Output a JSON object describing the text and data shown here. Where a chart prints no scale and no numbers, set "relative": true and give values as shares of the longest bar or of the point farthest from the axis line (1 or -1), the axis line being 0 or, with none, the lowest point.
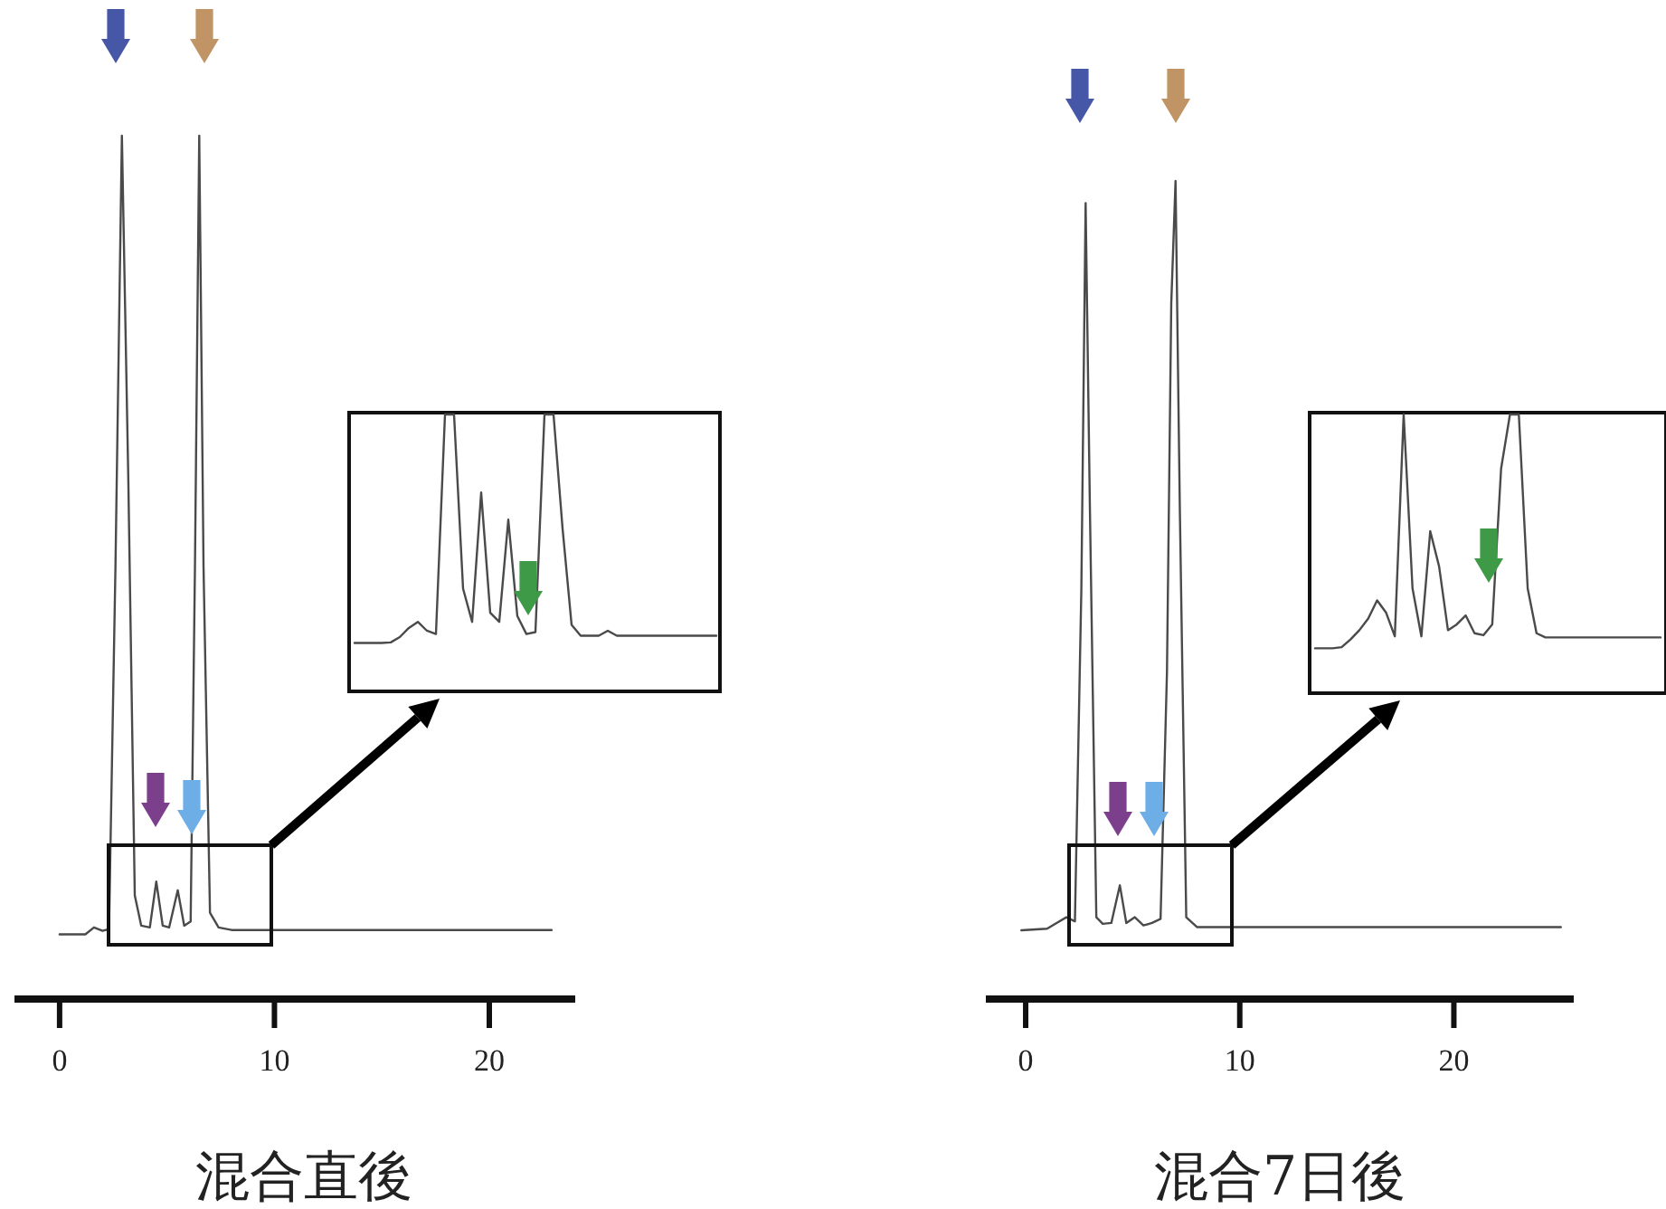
{
  "chart_data": [
    {
      "type": "line",
      "relative": true,
      "xlabel": "混合直後",
      "xlim": [
        -2.1,
        24
      ],
      "xticks": [
        0,
        10,
        20
      ],
      "series": [
        {
          "color": "#4a4a4a",
          "x": [
            0,
            1.2,
            1.6,
            2.0,
            2.3,
            2.6,
            2.9,
            3.2,
            3.5,
            3.8,
            4.2,
            4.5,
            4.8,
            5.1,
            5.5,
            5.8,
            6.1,
            6.3,
            6.5,
            6.7,
            7.0,
            7.4,
            8,
            12,
            16,
            20,
            22.9
          ],
          "values": [
            0.075,
            0.075,
            0.083,
            0.079,
            0.081,
            0.5,
            1,
            0.6,
            0.12,
            0.085,
            0.083,
            0.136,
            0.085,
            0.083,
            0.126,
            0.085,
            0.09,
            0.5,
            1,
            0.5,
            0.1,
            0.083,
            0.08,
            0.08,
            0.08,
            0.08,
            0.08
          ]
        }
      ]
    },
    {
      "type": "line",
      "relative": true,
      "categories": [
        null,
        null,
        null,
        null,
        null,
        null,
        null,
        null,
        null,
        null,
        null,
        null,
        null,
        null,
        null,
        null,
        null,
        null,
        null,
        null,
        null,
        null,
        null,
        null,
        null,
        null,
        null,
        null,
        null,
        null,
        null,
        null,
        null,
        null,
        null,
        null,
        null,
        null,
        null,
        null,
        null
      ],
      "series": [
        {
          "color": "#4a4a4a",
          "values": [
            0.175,
            0.175,
            0.175,
            0.175,
            0.177,
            0.196,
            0.229,
            0.251,
            0.219,
            0.207,
            1,
            1,
            0.371,
            0.251,
            0.718,
            0.284,
            0.251,
            0.62,
            0.272,
            0.207,
            0.214,
            1,
            1,
            0.588,
            0.24,
            0.201,
            0.201,
            0.201,
            0.219,
            0.201,
            0.201,
            0.201,
            0.201,
            0.201,
            0.201,
            0.201,
            0.201,
            0.201,
            0.201,
            0.201,
            0.201
          ]
        }
      ]
    },
    {
      "type": "line",
      "relative": true,
      "xlabel": "混合7日後",
      "xlim": [
        -1.86,
        25.6
      ],
      "xticks": [
        0,
        10,
        20
      ],
      "series": [
        {
          "color": "#4a4a4a",
          "x": [
            -0.2,
            1.0,
            1.9,
            2.3,
            2.6,
            2.8,
            3.0,
            3.3,
            3.6,
            4.0,
            4.4,
            4.7,
            5.1,
            5.5,
            5.9,
            6.3,
            6.6,
            6.8,
            7.0,
            7.2,
            7.5,
            8,
            12,
            16,
            20,
            25
          ],
          "values": [
            0.084,
            0.086,
            0.1,
            0.095,
            0.5,
            0.973,
            0.6,
            0.1,
            0.092,
            0.093,
            0.139,
            0.093,
            0.1,
            0.09,
            0.093,
            0.098,
            0.4,
            0.85,
            1,
            0.6,
            0.1,
            0.088,
            0.088,
            0.088,
            0.088,
            0.088
          ]
        }
      ]
    },
    {
      "type": "line",
      "relative": true,
      "categories": [
        null,
        null,
        null,
        null,
        null,
        null,
        null,
        null,
        null,
        null,
        null,
        null,
        null,
        null,
        null,
        null,
        null,
        null,
        null,
        null,
        null,
        null,
        null,
        null,
        null,
        null,
        null,
        null,
        null,
        null,
        null,
        null,
        null,
        null,
        null,
        null,
        null,
        null,
        null,
        null
      ],
      "series": [
        {
          "color": "#4a4a4a",
          "values": [
            0.161,
            0.161,
            0.161,
            0.165,
            0.193,
            0.226,
            0.268,
            0.333,
            0.29,
            0.204,
            1,
            0.376,
            0.204,
            0.581,
            0.455,
            0.226,
            0.247,
            0.279,
            0.215,
            0.208,
            0.247,
            0.806,
            1,
            1,
            0.376,
            0.215,
            0.2,
            0.2,
            0.2,
            0.2,
            0.2,
            0.2,
            0.2,
            0.2,
            0.2,
            0.2,
            0.2,
            0.2,
            0.2,
            0.2
          ]
        }
      ]
    }
  ]
}
